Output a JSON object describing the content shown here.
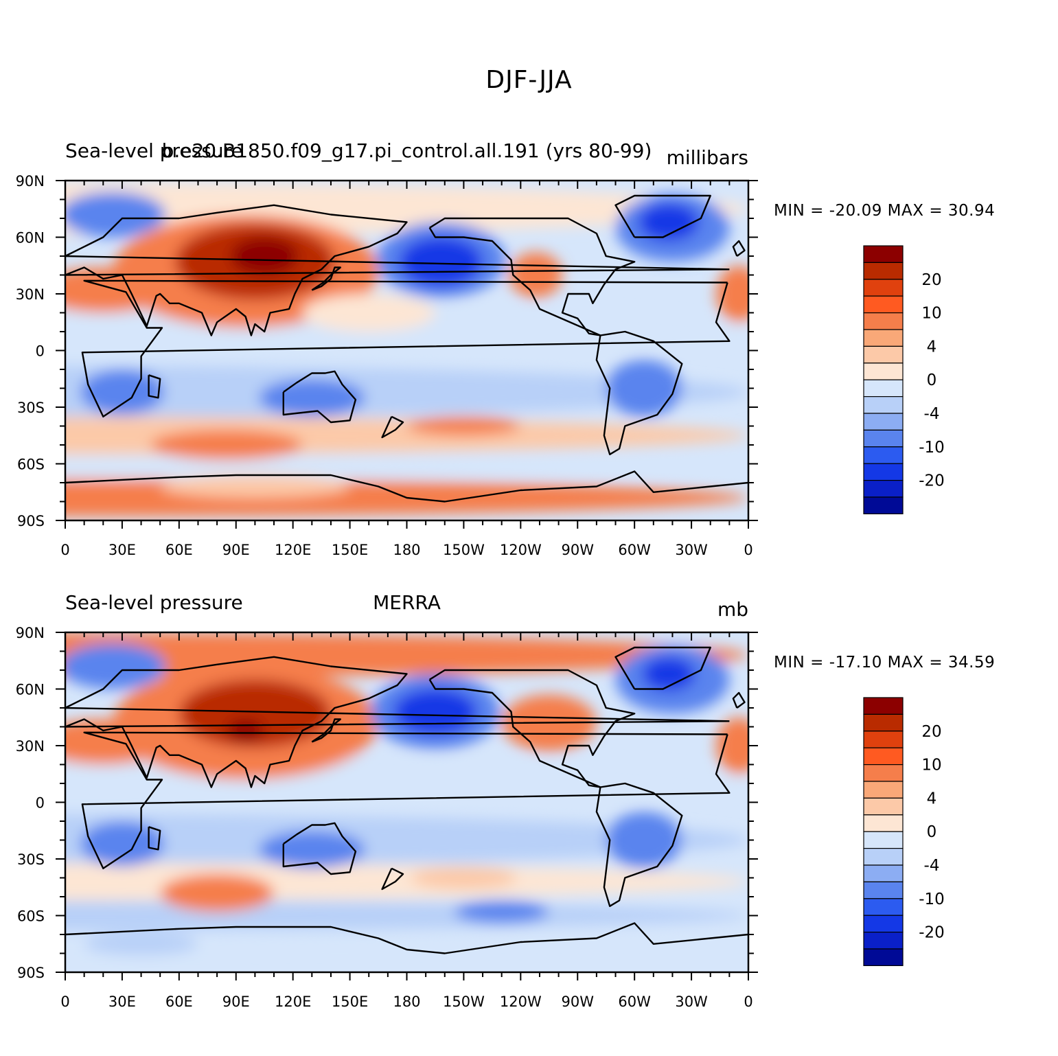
{
  "figure_title": "DJF-JJA",
  "panels": [
    {
      "left_title": "Sea-level pressure",
      "center_title": "b.e20.B1850.f09_g17.pi_control.all.191 (yrs 80-99)",
      "units": "millibars",
      "min_max": "MIN = -20.09 MAX =   30.94"
    },
    {
      "left_title": "Sea-level pressure",
      "center_title": "MERRA",
      "units": "mb",
      "min_max": "MIN = -17.10 MAX =   34.59"
    }
  ],
  "lon_labels": [
    "0",
    "30E",
    "60E",
    "90E",
    "120E",
    "150E",
    "180",
    "150W",
    "120W",
    "90W",
    "60W",
    "30W",
    "0"
  ],
  "lat_labels": [
    "90N",
    "60N",
    "30N",
    "0",
    "30S",
    "60S",
    "90S"
  ],
  "colorbar": {
    "labels": [
      "20",
      "10",
      "4",
      "0",
      "-4",
      "-10",
      "-20"
    ],
    "colors": [
      "#8c0000",
      "#b92b00",
      "#e0410e",
      "#ff5a21",
      "#f57e4b",
      "#f9a878",
      "#fcc9a8",
      "#fde6d4",
      "#d6e6fb",
      "#b8d0f8",
      "#8cadf3",
      "#5a84ee",
      "#2c5bf0",
      "#1438e6",
      "#0a20c8",
      "#000a96"
    ]
  },
  "map_colors": {
    "strong_pos": "#b92b00",
    "pos": "#f57e4b",
    "weak_pos": "#fcc9a8",
    "neutral_pos": "#fde6d4",
    "neutral_neg": "#d6e6fb",
    "weak_neg": "#b8d0f8",
    "neg": "#5a84ee",
    "strong_neg": "#1438e6"
  }
}
